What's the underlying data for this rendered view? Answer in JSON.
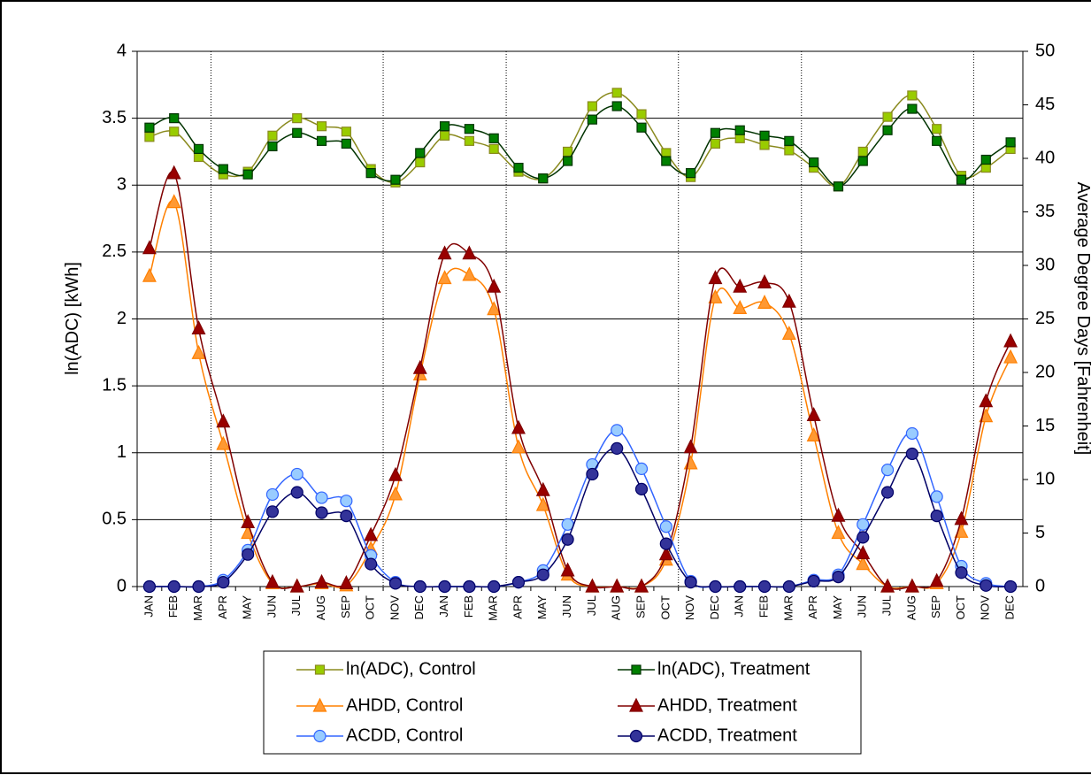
{
  "chart_data": {
    "type": "line",
    "y_label": "ln(ADC) [kWh]",
    "y2_label": "Average Degree Days [Fahrenheit]",
    "categories": [
      "JAN",
      "FEB",
      "MAR",
      "APR",
      "MAY",
      "JUN",
      "JUL",
      "AUG",
      "SEP",
      "OCT",
      "NOV",
      "DEC",
      "JAN",
      "FEB",
      "MAR",
      "APR",
      "MAY",
      "JUN",
      "JUL",
      "AUG",
      "SEP",
      "OCT",
      "NOV",
      "DEC",
      "JAN",
      "FEB",
      "MAR",
      "APR",
      "MAY",
      "JUN",
      "JUL",
      "AUG",
      "SEP",
      "OCT",
      "NOV",
      "DEC"
    ],
    "ylim": [
      0,
      4
    ],
    "yticks": [
      0,
      0.5,
      1,
      1.5,
      2,
      2.5,
      3,
      3.5,
      4
    ],
    "y2lim": [
      0,
      50
    ],
    "y2ticks": [
      0,
      5,
      10,
      15,
      20,
      25,
      30,
      35,
      40,
      45,
      50
    ],
    "grid": true,
    "series": [
      {
        "name": "ln(ADC), Control",
        "color": "#99cc00",
        "line": "#8a8a1e",
        "marker": "square",
        "values": [
          3.36,
          3.4,
          3.21,
          3.08,
          3.1,
          3.37,
          3.5,
          3.44,
          3.4,
          3.12,
          3.02,
          3.17,
          3.37,
          3.33,
          3.27,
          3.1,
          3.05,
          3.25,
          3.59,
          3.69,
          3.53,
          3.24,
          3.06,
          3.31,
          3.35,
          3.3,
          3.26,
          3.13,
          2.99,
          3.25,
          3.51,
          3.67,
          3.42,
          3.07,
          3.13,
          3.27
        ]
      },
      {
        "name": "ln(ADC), Treatment",
        "color": "#008000",
        "line": "#003300",
        "marker": "square",
        "values": [
          3.43,
          3.5,
          3.27,
          3.12,
          3.08,
          3.29,
          3.39,
          3.33,
          3.31,
          3.09,
          3.04,
          3.24,
          3.44,
          3.42,
          3.35,
          3.13,
          3.05,
          3.18,
          3.49,
          3.59,
          3.43,
          3.18,
          3.09,
          3.39,
          3.41,
          3.37,
          3.33,
          3.17,
          2.99,
          3.18,
          3.41,
          3.57,
          3.33,
          3.04,
          3.19,
          3.32
        ]
      },
      {
        "name": "AHDD, Control",
        "color": "#ff9933",
        "line": "#ff8000",
        "marker": "triangle",
        "axis": "y2",
        "values": [
          29,
          35.9,
          21.8,
          13.3,
          5,
          0.3,
          0,
          0.3,
          0.1,
          3.5,
          8.6,
          19.8,
          28.8,
          29.1,
          25.9,
          13,
          7.6,
          1.1,
          0,
          0,
          0,
          2.5,
          11.5,
          27,
          26,
          26.5,
          23.6,
          14.1,
          5,
          2.1,
          0,
          0,
          0.3,
          5.1,
          15.9,
          21.4
        ]
      },
      {
        "name": "AHDD, Treatment",
        "color": "#990000",
        "line": "#800000",
        "marker": "triangle",
        "axis": "y2",
        "values": [
          31.6,
          38.6,
          24.1,
          15.4,
          6,
          0.4,
          0,
          0.4,
          0.3,
          4.8,
          10.4,
          20.4,
          31.1,
          31.1,
          28,
          14.8,
          9,
          1.5,
          0,
          0,
          0,
          3,
          13,
          28.8,
          28,
          28.4,
          26.6,
          16,
          6.6,
          3.1,
          0,
          0,
          0.5,
          6.3,
          17.3,
          22.9
        ]
      },
      {
        "name": "ACDD, Control",
        "color": "#99ccff",
        "line": "#3366ff",
        "marker": "circle",
        "axis": "y2",
        "values": [
          0,
          0,
          0,
          0.6,
          3.4,
          8.6,
          10.5,
          8.3,
          8,
          2.9,
          0.4,
          0,
          0,
          0,
          0,
          0.4,
          1.5,
          5.8,
          11.4,
          14.6,
          11,
          5.6,
          0.5,
          0,
          0,
          0,
          0,
          0.6,
          1.1,
          5.8,
          10.9,
          14.3,
          8.4,
          1.9,
          0.3,
          0
        ]
      },
      {
        "name": "ACDD, Treatment",
        "color": "#333399",
        "line": "#000066",
        "marker": "circle",
        "axis": "y2",
        "values": [
          0,
          0,
          0,
          0.4,
          3,
          7,
          8.8,
          6.9,
          6.6,
          2.1,
          0.3,
          0,
          0,
          0,
          0,
          0.4,
          1.1,
          4.4,
          10.5,
          12.9,
          9.1,
          4,
          0.4,
          0,
          0,
          0,
          0,
          0.5,
          0.9,
          4.6,
          8.8,
          12.4,
          6.6,
          1.3,
          0.1,
          0
        ]
      }
    ]
  }
}
